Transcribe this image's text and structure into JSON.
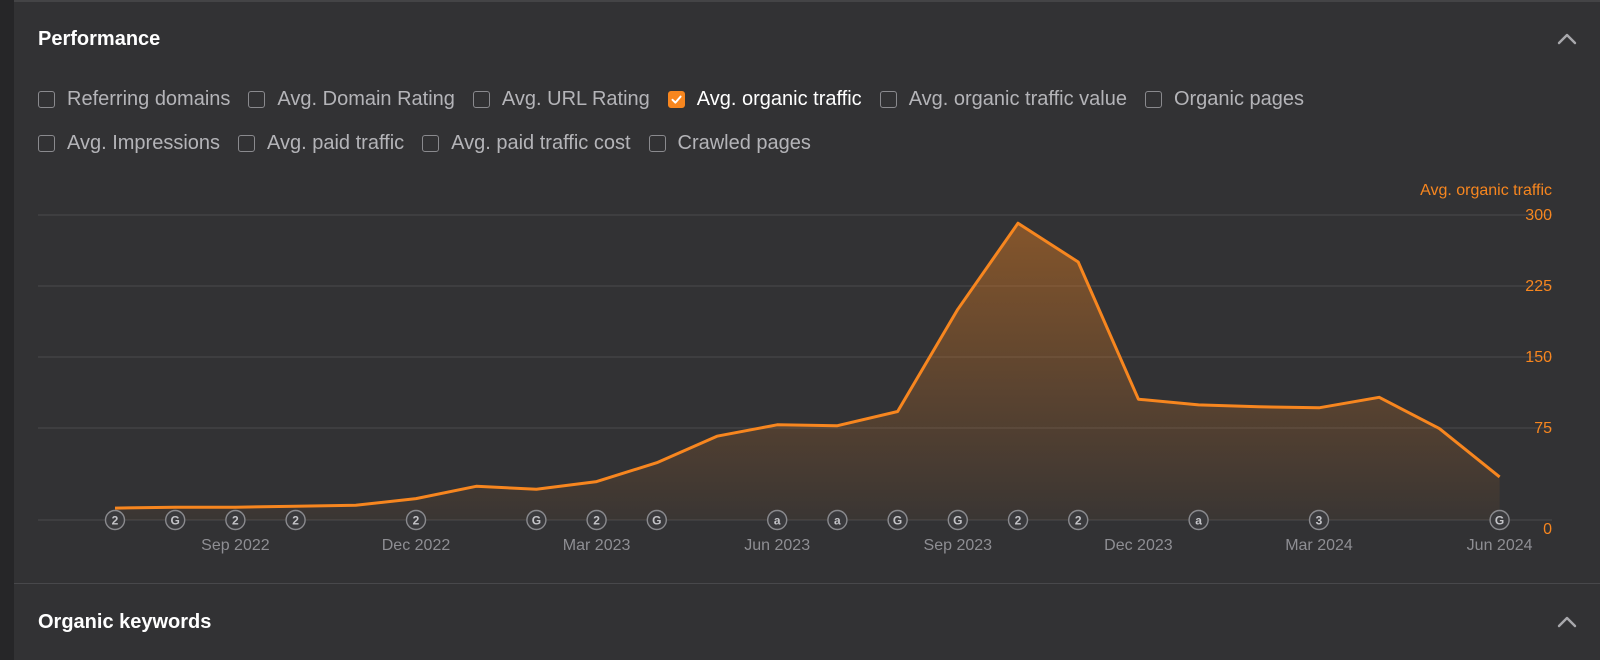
{
  "performance": {
    "title": "Performance",
    "filters": [
      [
        {
          "label": "Referring domains",
          "checked": false
        },
        {
          "label": "Avg. Domain Rating",
          "checked": false
        },
        {
          "label": "Avg. URL Rating",
          "checked": false
        },
        {
          "label": "Avg. organic traffic",
          "checked": true
        },
        {
          "label": "Avg. organic traffic value",
          "checked": false
        },
        {
          "label": "Organic pages",
          "checked": false
        }
      ],
      [
        {
          "label": "Avg. Impressions",
          "checked": false
        },
        {
          "label": "Avg. paid traffic",
          "checked": false
        },
        {
          "label": "Avg. paid traffic cost",
          "checked": false
        },
        {
          "label": "Crawled pages",
          "checked": false
        }
      ]
    ]
  },
  "organic_keywords": {
    "title": "Organic keywords"
  },
  "colors": {
    "accent": "#f7861f",
    "background": "#323234",
    "grid": "#4a4a4d",
    "axis_text": "#8e8e93"
  },
  "chart_data": {
    "type": "area",
    "title": "",
    "xlabel": "",
    "ylabel": "Avg. organic traffic",
    "ylim": [
      0,
      300
    ],
    "y_ticks": [
      0,
      75,
      150,
      225,
      300
    ],
    "x_ticks": [
      {
        "label": "Sep 2022",
        "date": "2022-09-01"
      },
      {
        "label": "Dec 2022",
        "date": "2022-12-01"
      },
      {
        "label": "Mar 2023",
        "date": "2023-03-01"
      },
      {
        "label": "Jun 2023",
        "date": "2023-06-01"
      },
      {
        "label": "Sep 2023",
        "date": "2023-09-01"
      },
      {
        "label": "Dec 2023",
        "date": "2023-12-01"
      },
      {
        "label": "Mar 2024",
        "date": "2024-03-01"
      },
      {
        "label": "Jun 2024",
        "date": "2024-06-01"
      }
    ],
    "grid": true,
    "series": [
      {
        "name": "Avg. organic traffic",
        "color": "#f7861f",
        "points": [
          {
            "date": "2022-07-01",
            "value": 2
          },
          {
            "date": "2022-08-01",
            "value": 3
          },
          {
            "date": "2022-09-01",
            "value": 3
          },
          {
            "date": "2022-10-01",
            "value": 4
          },
          {
            "date": "2022-11-01",
            "value": 5
          },
          {
            "date": "2022-12-01",
            "value": 12
          },
          {
            "date": "2023-01-01",
            "value": 25
          },
          {
            "date": "2023-02-01",
            "value": 22
          },
          {
            "date": "2023-03-01",
            "value": 30
          },
          {
            "date": "2023-04-01",
            "value": 50
          },
          {
            "date": "2023-05-01",
            "value": 78
          },
          {
            "date": "2023-06-01",
            "value": 90
          },
          {
            "date": "2023-07-01",
            "value": 89
          },
          {
            "date": "2023-08-01",
            "value": 104
          },
          {
            "date": "2023-09-01",
            "value": 212
          },
          {
            "date": "2023-10-01",
            "value": 303
          },
          {
            "date": "2023-11-01",
            "value": 262
          },
          {
            "date": "2023-12-01",
            "value": 117
          },
          {
            "date": "2024-01-01",
            "value": 111
          },
          {
            "date": "2024-02-01",
            "value": 109
          },
          {
            "date": "2024-03-01",
            "value": 108
          },
          {
            "date": "2024-04-01",
            "value": 119
          },
          {
            "date": "2024-05-01",
            "value": 86
          },
          {
            "date": "2024-06-01",
            "value": 35
          }
        ]
      }
    ],
    "annotations": [
      {
        "date": "2022-07-01",
        "label": "2"
      },
      {
        "date": "2022-08-01",
        "label": "G"
      },
      {
        "date": "2022-09-01",
        "label": "2"
      },
      {
        "date": "2022-10-01",
        "label": "2"
      },
      {
        "date": "2022-12-01",
        "label": "2"
      },
      {
        "date": "2023-02-01",
        "label": "G"
      },
      {
        "date": "2023-03-01",
        "label": "2"
      },
      {
        "date": "2023-04-01",
        "label": "G"
      },
      {
        "date": "2023-06-01",
        "label": "a"
      },
      {
        "date": "2023-07-01",
        "label": "a"
      },
      {
        "date": "2023-08-01",
        "label": "G"
      },
      {
        "date": "2023-09-01",
        "label": "G"
      },
      {
        "date": "2023-10-01",
        "label": "2"
      },
      {
        "date": "2023-11-01",
        "label": "2"
      },
      {
        "date": "2024-01-01",
        "label": "a"
      },
      {
        "date": "2024-03-01",
        "label": "3"
      },
      {
        "date": "2024-06-01",
        "label": "G"
      }
    ]
  }
}
